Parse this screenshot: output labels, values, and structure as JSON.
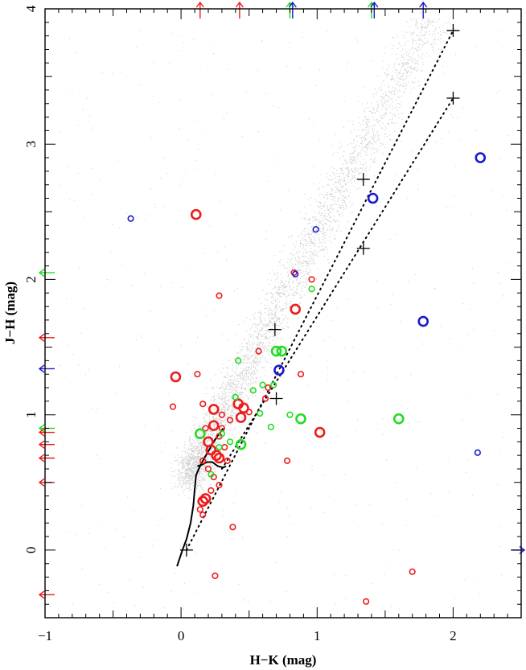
{
  "chart_data": {
    "type": "scatter",
    "xlabel": "H−K (mag)",
    "ylabel": "J−H (mag)",
    "xlim": [
      -1,
      2.5
    ],
    "ylim": [
      -0.5,
      4
    ],
    "x_ticks": [
      -1,
      0,
      1,
      2
    ],
    "y_ticks": [
      0,
      1,
      2,
      3,
      4
    ],
    "x_tick_labels": [
      "−1",
      "0",
      "1",
      "2"
    ],
    "y_tick_labels": [
      "0",
      "1",
      "2",
      "3",
      "4"
    ],
    "grid": false,
    "legend": "none",
    "colors": {
      "red": "#ee1c1c",
      "green": "#22dd22",
      "blue": "#1a1acc",
      "field": "#bbbbbb",
      "reddening": "#000000"
    },
    "series": [
      {
        "color": "red",
        "points": [
          {
            "x": 0.11,
            "y": 2.48,
            "size": "large"
          },
          {
            "x": 0.28,
            "y": 1.88,
            "size": "small"
          },
          {
            "x": 0.84,
            "y": 1.78,
            "size": "large"
          },
          {
            "x": 0.96,
            "y": 2.0,
            "size": "small"
          },
          {
            "x": 0.83,
            "y": 2.05,
            "size": "small"
          },
          {
            "x": 0.57,
            "y": 1.47,
            "size": "small"
          },
          {
            "x": 0.88,
            "y": 1.3,
            "size": "small"
          },
          {
            "x": -0.04,
            "y": 1.28,
            "size": "large"
          },
          {
            "x": 0.12,
            "y": 1.3,
            "size": "small"
          },
          {
            "x": -0.06,
            "y": 1.06,
            "size": "small"
          },
          {
            "x": 0.16,
            "y": 1.08,
            "size": "small"
          },
          {
            "x": 0.24,
            "y": 1.04,
            "size": "large"
          },
          {
            "x": 0.3,
            "y": 1.0,
            "size": "small"
          },
          {
            "x": 0.42,
            "y": 1.08,
            "size": "large"
          },
          {
            "x": 0.46,
            "y": 1.05,
            "size": "large"
          },
          {
            "x": 0.44,
            "y": 0.98,
            "size": "large"
          },
          {
            "x": 0.36,
            "y": 0.96,
            "size": "small"
          },
          {
            "x": 0.5,
            "y": 1.02,
            "size": "small"
          },
          {
            "x": 0.24,
            "y": 0.92,
            "size": "large"
          },
          {
            "x": 0.18,
            "y": 0.9,
            "size": "small"
          },
          {
            "x": 0.3,
            "y": 0.9,
            "size": "small"
          },
          {
            "x": 0.2,
            "y": 0.8,
            "size": "large"
          },
          {
            "x": 0.28,
            "y": 0.84,
            "size": "small"
          },
          {
            "x": 0.22,
            "y": 0.74,
            "size": "large"
          },
          {
            "x": 0.32,
            "y": 0.76,
            "size": "small"
          },
          {
            "x": 0.26,
            "y": 0.7,
            "size": "large"
          },
          {
            "x": 0.28,
            "y": 0.68,
            "size": "large"
          },
          {
            "x": 0.34,
            "y": 0.66,
            "size": "small"
          },
          {
            "x": 0.16,
            "y": 0.66,
            "size": "small"
          },
          {
            "x": 0.2,
            "y": 0.6,
            "size": "small"
          },
          {
            "x": 0.24,
            "y": 0.54,
            "size": "small"
          },
          {
            "x": 0.28,
            "y": 0.48,
            "size": "small"
          },
          {
            "x": 0.22,
            "y": 0.44,
            "size": "small"
          },
          {
            "x": 0.18,
            "y": 0.38,
            "size": "large"
          },
          {
            "x": 0.16,
            "y": 0.36,
            "size": "large"
          },
          {
            "x": 0.14,
            "y": 0.3,
            "size": "small"
          },
          {
            "x": 0.16,
            "y": 0.26,
            "size": "small"
          },
          {
            "x": 0.38,
            "y": 0.17,
            "size": "small"
          },
          {
            "x": 0.62,
            "y": 1.12,
            "size": "small"
          },
          {
            "x": 0.64,
            "y": 1.2,
            "size": "small"
          },
          {
            "x": 0.78,
            "y": 0.66,
            "size": "small"
          },
          {
            "x": 1.02,
            "y": 0.87,
            "size": "large"
          },
          {
            "x": 0.25,
            "y": -0.19,
            "size": "small"
          },
          {
            "x": 1.7,
            "y": -0.16,
            "size": "small"
          },
          {
            "x": 1.36,
            "y": -0.38,
            "size": "small"
          }
        ]
      },
      {
        "color": "green",
        "points": [
          {
            "x": 0.96,
            "y": 1.93,
            "size": "small"
          },
          {
            "x": 0.7,
            "y": 1.47,
            "size": "large"
          },
          {
            "x": 0.74,
            "y": 1.47,
            "size": "large"
          },
          {
            "x": 0.42,
            "y": 1.4,
            "size": "small"
          },
          {
            "x": 0.68,
            "y": 1.22,
            "size": "small"
          },
          {
            "x": 0.6,
            "y": 1.22,
            "size": "small"
          },
          {
            "x": 0.4,
            "y": 1.13,
            "size": "small"
          },
          {
            "x": 0.53,
            "y": 1.18,
            "size": "small"
          },
          {
            "x": 0.8,
            "y": 1.0,
            "size": "small"
          },
          {
            "x": 0.88,
            "y": 0.97,
            "size": "large"
          },
          {
            "x": 0.58,
            "y": 1.01,
            "size": "small"
          },
          {
            "x": 0.66,
            "y": 0.91,
            "size": "small"
          },
          {
            "x": 0.14,
            "y": 0.86,
            "size": "large"
          },
          {
            "x": 0.3,
            "y": 0.86,
            "size": "small"
          },
          {
            "x": 0.36,
            "y": 0.8,
            "size": "small"
          },
          {
            "x": 0.44,
            "y": 0.78,
            "size": "large"
          },
          {
            "x": 0.28,
            "y": 0.76,
            "size": "small"
          },
          {
            "x": 0.22,
            "y": 0.56,
            "size": "small"
          },
          {
            "x": 1.6,
            "y": 0.97,
            "size": "large"
          }
        ]
      },
      {
        "color": "blue",
        "points": [
          {
            "x": -0.37,
            "y": 2.45,
            "size": "small"
          },
          {
            "x": 0.99,
            "y": 2.37,
            "size": "small"
          },
          {
            "x": 0.84,
            "y": 2.04,
            "size": "small"
          },
          {
            "x": 1.41,
            "y": 2.6,
            "size": "large"
          },
          {
            "x": 2.2,
            "y": 2.9,
            "size": "large"
          },
          {
            "x": 1.78,
            "y": 1.69,
            "size": "large"
          },
          {
            "x": 0.72,
            "y": 1.33,
            "size": "large"
          },
          {
            "x": 2.18,
            "y": 0.72,
            "size": "small"
          }
        ]
      }
    ],
    "intrinsic_locus": [
      [
        -0.03,
        -0.12
      ],
      [
        0.01,
        0.0
      ],
      [
        0.04,
        0.08
      ],
      [
        0.07,
        0.2
      ],
      [
        0.09,
        0.33
      ],
      [
        0.1,
        0.45
      ],
      [
        0.11,
        0.55
      ],
      [
        0.13,
        0.6
      ],
      [
        0.16,
        0.66
      ],
      [
        0.2,
        0.73
      ],
      [
        0.24,
        0.8
      ],
      [
        0.28,
        0.86
      ],
      [
        0.31,
        0.9
      ]
    ],
    "giant_branch": [
      [
        0.12,
        0.62
      ],
      [
        0.15,
        0.63
      ],
      [
        0.19,
        0.65
      ],
      [
        0.23,
        0.65
      ],
      [
        0.27,
        0.62
      ],
      [
        0.31,
        0.61
      ],
      [
        0.33,
        0.62
      ]
    ],
    "reddening_vectors": [
      {
        "from": [
          0.04,
          0.0
        ],
        "to": [
          2.0,
          3.84
        ],
        "markers": [
          [
            0.04,
            0.0
          ],
          [
            0.69,
            1.63
          ],
          [
            1.34,
            2.74
          ],
          [
            2.0,
            3.84
          ]
        ]
      },
      {
        "from": [
          0.3,
          0.6
        ],
        "to": [
          2.0,
          3.34
        ],
        "markers": [
          [
            0.7,
            1.12
          ],
          [
            1.34,
            2.23
          ],
          [
            2.0,
            3.34
          ]
        ]
      }
    ],
    "top_edge_arrows": [
      {
        "x": 0.14,
        "color": "red"
      },
      {
        "x": 0.43,
        "color": "red"
      },
      {
        "x": 0.8,
        "color": "green"
      },
      {
        "x": 0.82,
        "color": "blue"
      },
      {
        "x": 1.4,
        "color": "green"
      },
      {
        "x": 1.42,
        "color": "blue"
      },
      {
        "x": 1.78,
        "color": "blue"
      }
    ],
    "left_edge_arrows": [
      {
        "y": 2.05,
        "color": "green"
      },
      {
        "y": 1.57,
        "color": "red"
      },
      {
        "y": 1.34,
        "color": "blue"
      },
      {
        "y": 0.9,
        "color": "green"
      },
      {
        "y": 0.87,
        "color": "red"
      },
      {
        "y": 0.78,
        "color": "red"
      },
      {
        "y": 0.68,
        "color": "red"
      },
      {
        "y": 0.5,
        "color": "red"
      },
      {
        "y": -0.33,
        "color": "red"
      }
    ],
    "right_edge_arrows": [
      {
        "y": 0.0,
        "color": "blue"
      }
    ]
  }
}
